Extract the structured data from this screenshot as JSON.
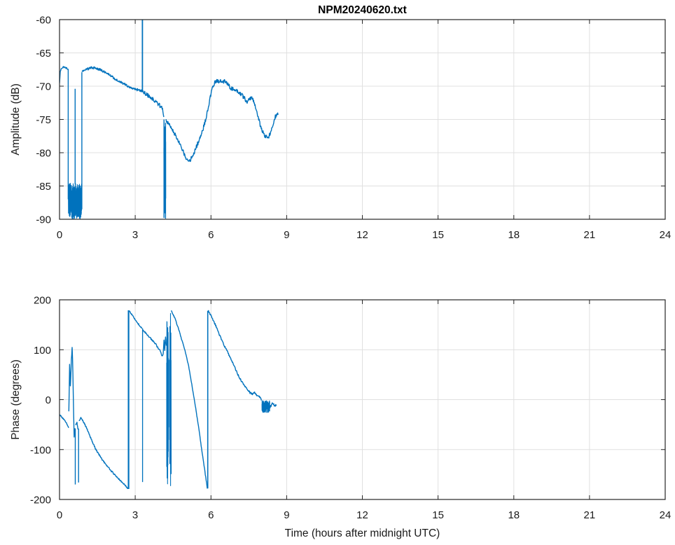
{
  "figure": {
    "title": "NPM20240620.txt",
    "colors": {
      "line": "#0072BD",
      "axis": "#262626",
      "grid": "#e0e0e0",
      "background": "#ffffff"
    }
  },
  "chart_data": [
    {
      "type": "line",
      "name": "amplitude",
      "title": "NPM20240620.txt",
      "ylabel": "Amplitude (dB)",
      "xlim": [
        0,
        24
      ],
      "ylim": [
        -90,
        -60
      ],
      "xticks": [
        0,
        3,
        6,
        9,
        12,
        15,
        18,
        21,
        24
      ],
      "yticks": [
        -90,
        -85,
        -80,
        -75,
        -70,
        -65,
        -60
      ],
      "grid": true,
      "legend": "none",
      "series": [
        {
          "name": "amplitude",
          "color": "#0072BD",
          "segments": [
            {
              "type": "line",
              "jitter": 0.12,
              "points": [
                [
                  0.0,
                  -69.6
                ],
                [
                  0.03,
                  -67.8
                ],
                [
                  0.08,
                  -67.3
                ],
                [
                  0.15,
                  -67.1
                ],
                [
                  0.22,
                  -67.2
                ],
                [
                  0.33,
                  -67.4
                ]
              ]
            },
            {
              "type": "vline",
              "t": 0.345,
              "from": -67.4,
              "to": -87.0,
              "w": 1.4
            },
            {
              "type": "band",
              "t0": 0.35,
              "t1": 0.875,
              "min": -90,
              "max": -84.6
            },
            {
              "type": "vline",
              "t": 0.62,
              "from": -84.8,
              "to": -70.4,
              "w": 1.4
            },
            {
              "type": "vline",
              "t": 0.885,
              "from": -88.5,
              "to": -67.9,
              "w": 1.4
            },
            {
              "type": "line",
              "jitter": 0.18,
              "points": [
                [
                  0.89,
                  -67.8
                ],
                [
                  1.0,
                  -67.5
                ],
                [
                  1.15,
                  -67.4
                ],
                [
                  1.3,
                  -67.2
                ],
                [
                  1.45,
                  -67.3
                ],
                [
                  1.6,
                  -67.5
                ],
                [
                  1.8,
                  -67.9
                ],
                [
                  2.0,
                  -68.4
                ],
                [
                  2.2,
                  -68.9
                ],
                [
                  2.45,
                  -69.4
                ],
                [
                  2.7,
                  -70.0
                ],
                [
                  2.95,
                  -70.4
                ],
                [
                  3.15,
                  -70.6
                ],
                [
                  3.27,
                  -70.7
                ]
              ]
            },
            {
              "type": "vline",
              "t": 3.285,
              "from": -70.9,
              "to": -60.05,
              "w": 1.8
            },
            {
              "type": "line",
              "jitter": 0.3,
              "points": [
                [
                  3.3,
                  -70.8
                ],
                [
                  3.5,
                  -71.4
                ],
                [
                  3.75,
                  -72.1
                ],
                [
                  3.95,
                  -72.8
                ],
                [
                  4.08,
                  -73.4
                ],
                [
                  4.13,
                  -74.4
                ]
              ]
            },
            {
              "type": "band",
              "t0": 4.135,
              "t1": 4.21,
              "min": -89.8,
              "max": -75.6
            },
            {
              "type": "vline",
              "t": 4.14,
              "from": -75.0,
              "to": -89.8,
              "w": 1.4
            },
            {
              "type": "vline",
              "t": 4.2,
              "from": -75.5,
              "to": -89.9,
              "w": 1.4
            },
            {
              "type": "line",
              "jitter": 0.3,
              "points": [
                [
                  4.22,
                  -75.1
                ],
                [
                  4.4,
                  -76.1
                ],
                [
                  4.6,
                  -77.4
                ],
                [
                  4.8,
                  -79.0
                ],
                [
                  4.95,
                  -80.3
                ],
                [
                  5.08,
                  -81.2
                ],
                [
                  5.2,
                  -81.0
                ],
                [
                  5.35,
                  -79.8
                ],
                [
                  5.5,
                  -78.4
                ],
                [
                  5.65,
                  -76.9
                ],
                [
                  5.8,
                  -74.9
                ],
                [
                  5.95,
                  -72.1
                ],
                [
                  6.05,
                  -70.4
                ],
                [
                  6.15,
                  -69.5
                ],
                [
                  6.25,
                  -69.2
                ],
                [
                  6.4,
                  -69.3
                ],
                [
                  6.55,
                  -69.3
                ],
                [
                  6.65,
                  -69.5
                ],
                [
                  6.75,
                  -70.2
                ],
                [
                  6.9,
                  -70.5
                ],
                [
                  7.05,
                  -70.7
                ],
                [
                  7.2,
                  -71.2
                ],
                [
                  7.35,
                  -71.9
                ],
                [
                  7.45,
                  -72.5
                ],
                [
                  7.52,
                  -71.9
                ],
                [
                  7.62,
                  -71.7
                ],
                [
                  7.72,
                  -72.5
                ],
                [
                  7.82,
                  -73.9
                ],
                [
                  7.95,
                  -75.8
                ],
                [
                  8.05,
                  -76.9
                ],
                [
                  8.15,
                  -77.5
                ],
                [
                  8.25,
                  -77.8
                ],
                [
                  8.35,
                  -77.2
                ],
                [
                  8.45,
                  -75.9
                ],
                [
                  8.55,
                  -74.6
                ],
                [
                  8.66,
                  -74.2
                ]
              ]
            }
          ]
        }
      ]
    },
    {
      "type": "line",
      "name": "phase",
      "ylabel": "Phase (degrees)",
      "xlabel": "Time (hours after midnight UTC)",
      "xlim": [
        0,
        24
      ],
      "ylim": [
        -200,
        200
      ],
      "xticks": [
        0,
        3,
        6,
        9,
        12,
        15,
        18,
        21,
        24
      ],
      "yticks": [
        -200,
        -100,
        0,
        100,
        200
      ],
      "grid": true,
      "legend": "none",
      "series": [
        {
          "name": "phase",
          "color": "#0072BD",
          "segments": [
            {
              "type": "line",
              "jitter": 1.2,
              "points": [
                [
                  0.0,
                  -30
                ],
                [
                  0.15,
                  -38
                ],
                [
                  0.28,
                  -48
                ],
                [
                  0.36,
                  -56
                ]
              ]
            },
            {
              "type": "line",
              "jitter": 3,
              "points": [
                [
                  0.37,
                  -25
                ],
                [
                  0.4,
                  68
                ],
                [
                  0.43,
                  30
                ],
                [
                  0.47,
                  80
                ],
                [
                  0.5,
                  105
                ],
                [
                  0.53,
                  55
                ],
                [
                  0.56,
                  -30
                ],
                [
                  0.58,
                  -75
                ],
                [
                  0.61,
                  -58
                ]
              ]
            },
            {
              "type": "vline",
              "t": 0.625,
              "from": -58,
              "to": -170,
              "w": 1.4
            },
            {
              "type": "line",
              "jitter": 2,
              "points": [
                [
                  0.64,
                  -52
                ],
                [
                  0.69,
                  -46
                ],
                [
                  0.73,
                  -58
                ]
              ]
            },
            {
              "type": "vline",
              "t": 0.755,
              "from": -58,
              "to": -166,
              "w": 1.4
            },
            {
              "type": "line",
              "jitter": 1.4,
              "points": [
                [
                  0.77,
                  -42
                ],
                [
                  0.86,
                  -36
                ],
                [
                  0.97,
                  -46
                ],
                [
                  1.1,
                  -60
                ],
                [
                  1.28,
                  -82
                ],
                [
                  1.44,
                  -100
                ],
                [
                  1.7,
                  -121
                ],
                [
                  2.0,
                  -140
                ],
                [
                  2.3,
                  -157
                ],
                [
                  2.55,
                  -169
                ],
                [
                  2.71,
                  -178
                ]
              ]
            },
            {
              "type": "vline",
              "t": 2.735,
              "from": -179,
              "to": 179,
              "w": 2.2
            },
            {
              "type": "line",
              "jitter": 1.2,
              "points": [
                [
                  2.76,
                  178
                ],
                [
                  2.95,
                  164
                ],
                [
                  3.15,
                  150
                ],
                [
                  3.27,
                  143
                ]
              ]
            },
            {
              "type": "vline",
              "t": 3.29,
              "from": 143,
              "to": -165,
              "w": 1.3
            },
            {
              "type": "line",
              "jitter": 1.8,
              "points": [
                [
                  3.31,
                  139
                ],
                [
                  3.55,
                  126
                ],
                [
                  3.8,
                  112
                ],
                [
                  4.0,
                  96
                ],
                [
                  4.07,
                  87
                ],
                [
                  4.11,
                  94
                ],
                [
                  4.14,
                  118
                ],
                [
                  4.17,
                  97
                ],
                [
                  4.2,
                  127
                ],
                [
                  4.23,
                  108
                ]
              ]
            },
            {
              "type": "band",
              "t0": 4.245,
              "t1": 4.315,
              "min": -177,
              "max": 168
            },
            {
              "type": "band",
              "t0": 4.35,
              "t1": 4.425,
              "min": -178,
              "max": 177
            },
            {
              "type": "line",
              "jitter": 1.2,
              "points": [
                [
                  4.43,
                  178
                ],
                [
                  4.58,
                  162
                ],
                [
                  4.72,
                  141
                ],
                [
                  4.87,
                  116
                ],
                [
                  4.97,
                  99
                ],
                [
                  5.12,
                  66
                ],
                [
                  5.27,
                  22
                ],
                [
                  5.38,
                  -12
                ],
                [
                  5.52,
                  -58
                ],
                [
                  5.63,
                  -98
                ],
                [
                  5.73,
                  -133
                ],
                [
                  5.81,
                  -161
                ],
                [
                  5.855,
                  -177
                ]
              ]
            },
            {
              "type": "vline",
              "t": 5.875,
              "from": -178,
              "to": 178,
              "w": 1.6
            },
            {
              "type": "line",
              "jitter": 1.8,
              "points": [
                [
                  5.89,
                  178
                ],
                [
                  6.02,
                  167
                ],
                [
                  6.17,
                  151
                ],
                [
                  6.32,
                  132
                ],
                [
                  6.47,
                  114
                ],
                [
                  6.62,
                  99
                ],
                [
                  6.77,
                  84
                ],
                [
                  6.92,
                  67
                ],
                [
                  7.07,
                  50
                ],
                [
                  7.22,
                  36
                ],
                [
                  7.36,
                  25
                ],
                [
                  7.46,
                  20
                ],
                [
                  7.56,
                  13
                ],
                [
                  7.66,
                  11
                ],
                [
                  7.73,
                  16
                ],
                [
                  7.82,
                  8
                ],
                [
                  7.92,
                  6
                ],
                [
                  8.0,
                  0
                ]
              ]
            },
            {
              "type": "band",
              "t0": 8.02,
              "t1": 8.33,
              "min": -26,
              "max": -2
            },
            {
              "type": "line",
              "jitter": 2.5,
              "points": [
                [
                  8.33,
                  -16
                ],
                [
                  8.43,
                  -7
                ],
                [
                  8.52,
                  -12
                ],
                [
                  8.6,
                  -10
                ]
              ]
            }
          ]
        }
      ]
    }
  ]
}
